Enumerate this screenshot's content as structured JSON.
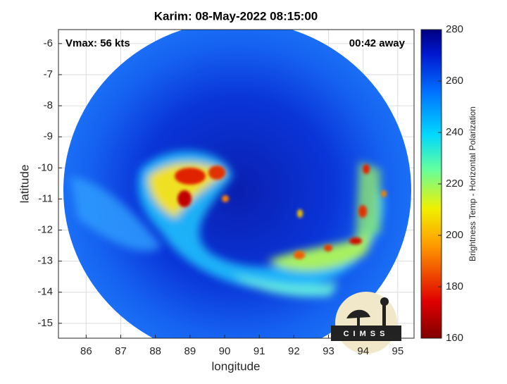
{
  "plot": {
    "title": "Karim: 08-May-2022 08:15:00",
    "vmax_label": "Vmax: 56 kts",
    "time_label": "00:42 away",
    "xlabel": "longitude",
    "ylabel": "latitude",
    "xlim": [
      85.2,
      95.47
    ],
    "ylim": [
      -15.48,
      -5.55
    ],
    "xticks": [
      86,
      87,
      88,
      89,
      90,
      91,
      92,
      93,
      94,
      95
    ],
    "yticks": [
      -6,
      -7,
      -8,
      -9,
      -10,
      -11,
      -12,
      -13,
      -14,
      -15
    ],
    "grid": true
  },
  "colorbar": {
    "label": "Brightness Temp - Horizontal Polarization",
    "lim": [
      160,
      280
    ],
    "ticks": [
      160,
      180,
      200,
      220,
      240,
      260,
      280
    ]
  },
  "logo": {
    "text": "CIMSS"
  }
}
